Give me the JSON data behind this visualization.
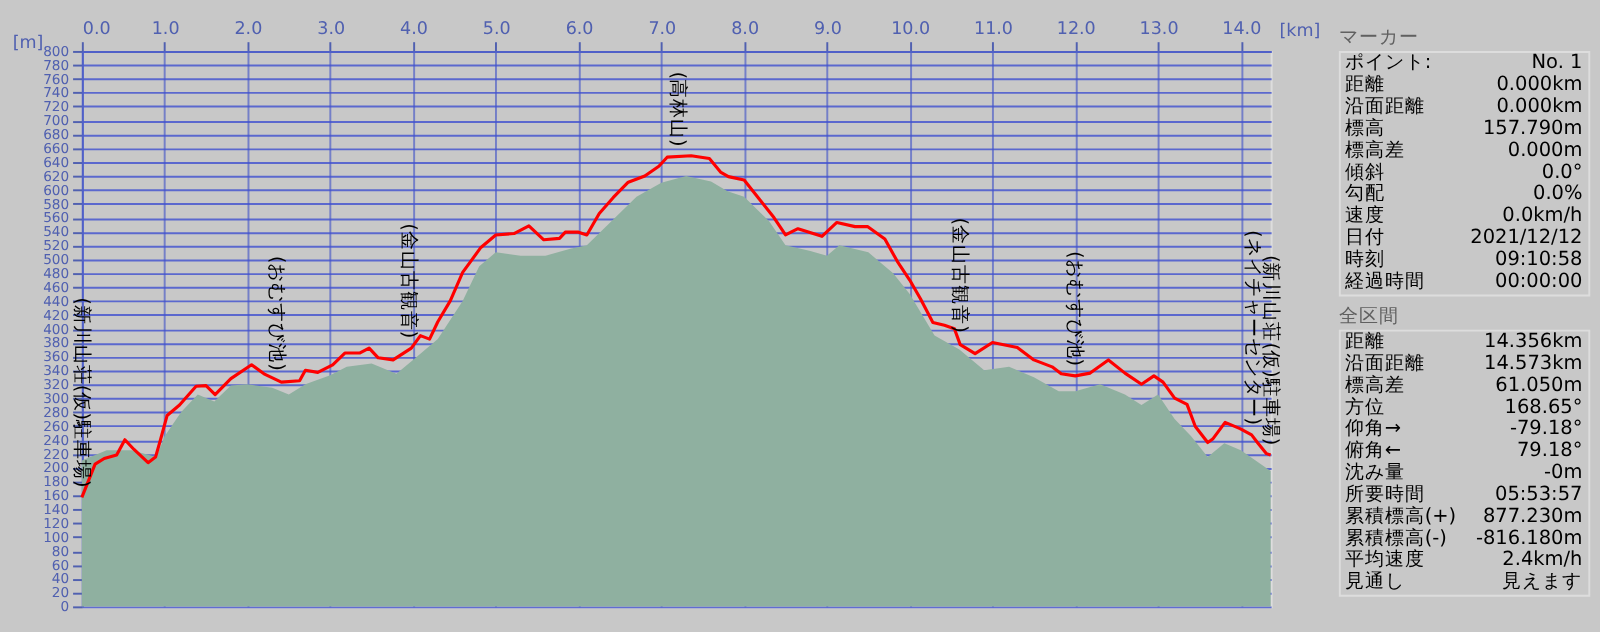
{
  "chart_data": [
    {
      "type": "line",
      "xlabel": "[km]",
      "ylabel": "[m]",
      "xlim": [
        0,
        14.36
      ],
      "ylim": [
        0,
        800
      ],
      "xticks": [
        {
          "value": 0,
          "label": "0.0"
        },
        {
          "value": 1,
          "label": "1.0"
        },
        {
          "value": 2,
          "label": "2.0"
        },
        {
          "value": 3,
          "label": "3.0"
        },
        {
          "value": 4,
          "label": "4.0"
        },
        {
          "value": 5,
          "label": "5.0"
        },
        {
          "value": 6,
          "label": "6.0"
        },
        {
          "value": 7,
          "label": "7.0"
        },
        {
          "value": 8,
          "label": "8.0"
        },
        {
          "value": 9,
          "label": "9.0"
        },
        {
          "value": 10,
          "label": "10.0"
        },
        {
          "value": 11,
          "label": "11.0"
        },
        {
          "value": 12,
          "label": "12.0"
        },
        {
          "value": 13,
          "label": "13.0"
        },
        {
          "value": 14,
          "label": "14.0"
        }
      ],
      "yticks": [
        0,
        20,
        40,
        60,
        80,
        100,
        120,
        140,
        160,
        180,
        200,
        220,
        240,
        260,
        280,
        300,
        320,
        340,
        360,
        380,
        400,
        420,
        440,
        460,
        480,
        500,
        520,
        540,
        560,
        580,
        600,
        620,
        640,
        660,
        680,
        700,
        720,
        740,
        760,
        780,
        800
      ],
      "grid": true,
      "marker": "none",
      "line_style": "solid",
      "series": [
        {
          "type": "area",
          "color": "#8fb0a0",
          "x": [
            0,
            0.3,
            0.6,
            0.9,
            1.0,
            1.2,
            1.4,
            1.6,
            1.8,
            2.0,
            2.3,
            2.5,
            2.7,
            3.0,
            3.2,
            3.5,
            3.8,
            4.0,
            4.3,
            4.6,
            4.8,
            5.0,
            5.3,
            5.6,
            5.9,
            6.1,
            6.4,
            6.7,
            7.0,
            7.3,
            7.6,
            7.8,
            8.0,
            8.3,
            8.5,
            8.8,
            9.0,
            9.15,
            9.5,
            9.8,
            10.0,
            10.3,
            10.6,
            10.9,
            11.2,
            11.5,
            11.8,
            12.0,
            12.3,
            12.6,
            12.8,
            13.0,
            13.2,
            13.4,
            13.6,
            13.8,
            14.0,
            14.36
          ],
          "values": [
            210,
            225,
            225,
            215,
            245,
            280,
            305,
            295,
            318,
            320,
            315,
            305,
            320,
            333,
            345,
            350,
            335,
            355,
            385,
            440,
            490,
            510,
            505,
            505,
            515,
            520,
            555,
            590,
            610,
            620,
            612,
            598,
            590,
            555,
            520,
            512,
            505,
            520,
            510,
            480,
            450,
            390,
            370,
            340,
            345,
            330,
            310,
            310,
            320,
            305,
            290,
            305,
            270,
            245,
            215,
            235,
            225,
            195
          ]
        },
        {
          "type": "line",
          "color": "#ff0000",
          "x": [
            0,
            0.16,
            0.27,
            0.42,
            0.52,
            0.63,
            0.8,
            0.89,
            0.95,
            1.03,
            1.18,
            1.38,
            1.5,
            1.61,
            1.8,
            2.05,
            2.2,
            2.41,
            2.63,
            2.7,
            2.85,
            3.03,
            3.18,
            3.36,
            3.47,
            3.58,
            3.76,
            3.98,
            4.09,
            4.2,
            4.3,
            4.45,
            4.6,
            4.82,
            5.0,
            5.22,
            5.4,
            5.58,
            5.77,
            5.84,
            6.0,
            6.1,
            6.25,
            6.42,
            6.6,
            6.8,
            6.97,
            7.07,
            7.36,
            7.58,
            7.72,
            7.81,
            8.0,
            8.18,
            8.36,
            8.5,
            8.65,
            8.94,
            9.12,
            9.34,
            9.49,
            9.7,
            9.85,
            10.0,
            10.13,
            10.28,
            10.42,
            10.54,
            10.61,
            10.79,
            11.0,
            11.3,
            11.5,
            11.72,
            11.83,
            12.0,
            12.18,
            12.4,
            12.6,
            12.8,
            12.95,
            13.06,
            13.2,
            13.35,
            13.45,
            13.6,
            13.66,
            13.81,
            13.99,
            14.13,
            14.2,
            14.31,
            14.36
          ],
          "values": [
            157,
            205,
            213,
            218,
            240,
            226,
            207,
            215,
            240,
            275,
            290,
            317,
            318,
            305,
            328,
            348,
            335,
            323,
            325,
            340,
            337,
            348,
            365,
            365,
            372,
            358,
            355,
            372,
            390,
            385,
            410,
            440,
            481,
            517,
            535,
            537,
            548,
            528,
            530,
            539,
            539,
            535,
            566,
            589,
            611,
            620,
            634,
            647,
            649,
            645,
            625,
            619,
            614,
            587,
            560,
            535,
            544,
            533,
            553,
            547,
            547,
            529,
            497,
            470,
            443,
            409,
            405,
            400,
            377,
            364,
            380,
            373,
            355,
            345,
            335,
            332,
            336,
            355,
            336,
            320,
            332,
            323,
            300,
            291,
            259,
            236,
            241,
            265,
            256,
            247,
            236,
            220,
            218
          ]
        }
      ],
      "annotations": [
        {
          "text": "(新川山荘(仮)駐車場)",
          "x": 0,
          "y": 157
        },
        {
          "text": "(おむすび池)",
          "x": 2.35,
          "y": 325
        },
        {
          "text": "(金山古観音)",
          "x": 3.95,
          "y": 372
        },
        {
          "text": "(高林山)",
          "x": 7.2,
          "y": 648
        },
        {
          "text": "(金山古観音)",
          "x": 10.6,
          "y": 380
        },
        {
          "text": "(おむすび池)",
          "x": 12.0,
          "y": 332
        },
        {
          "text": "(新川山荘(仮)駐車場)",
          "x": 14.36,
          "y": 218
        },
        {
          "text": "(ネイチャーセンター)",
          "x": 14.15,
          "y": 247
        }
      ]
    },
    {
      "type": "other",
      "title": "マーカー",
      "annotations": [
        "ポイント:",
        "No. 1",
        "距離",
        "0.000km",
        "沿面距離",
        "0.000km",
        "標高",
        "157.790m",
        "標高差",
        "0.000m",
        "傾斜",
        "0.0°",
        "勾配",
        "0.0%",
        "速度",
        "0.0km/h",
        "日付",
        "2021/12/12",
        "時刻",
        "09:10:58",
        "経過時間",
        "00:00:00"
      ]
    },
    {
      "type": "other",
      "title": "全区間",
      "annotations": [
        "距離",
        "14.356km",
        "沿面距離",
        "14.573km",
        "標高差",
        "61.050m",
        "方位",
        "168.65°",
        "仰角→",
        "-79.18°",
        "俯角←",
        "79.18°",
        "沈み量",
        "-0m",
        "所要時間",
        "05:53:57",
        "累積標高(+)",
        "877.230m",
        "累積標高(-)",
        "-816.180m",
        "平均速度",
        "2.4km/h",
        "見通し",
        "見えます"
      ]
    }
  ]
}
